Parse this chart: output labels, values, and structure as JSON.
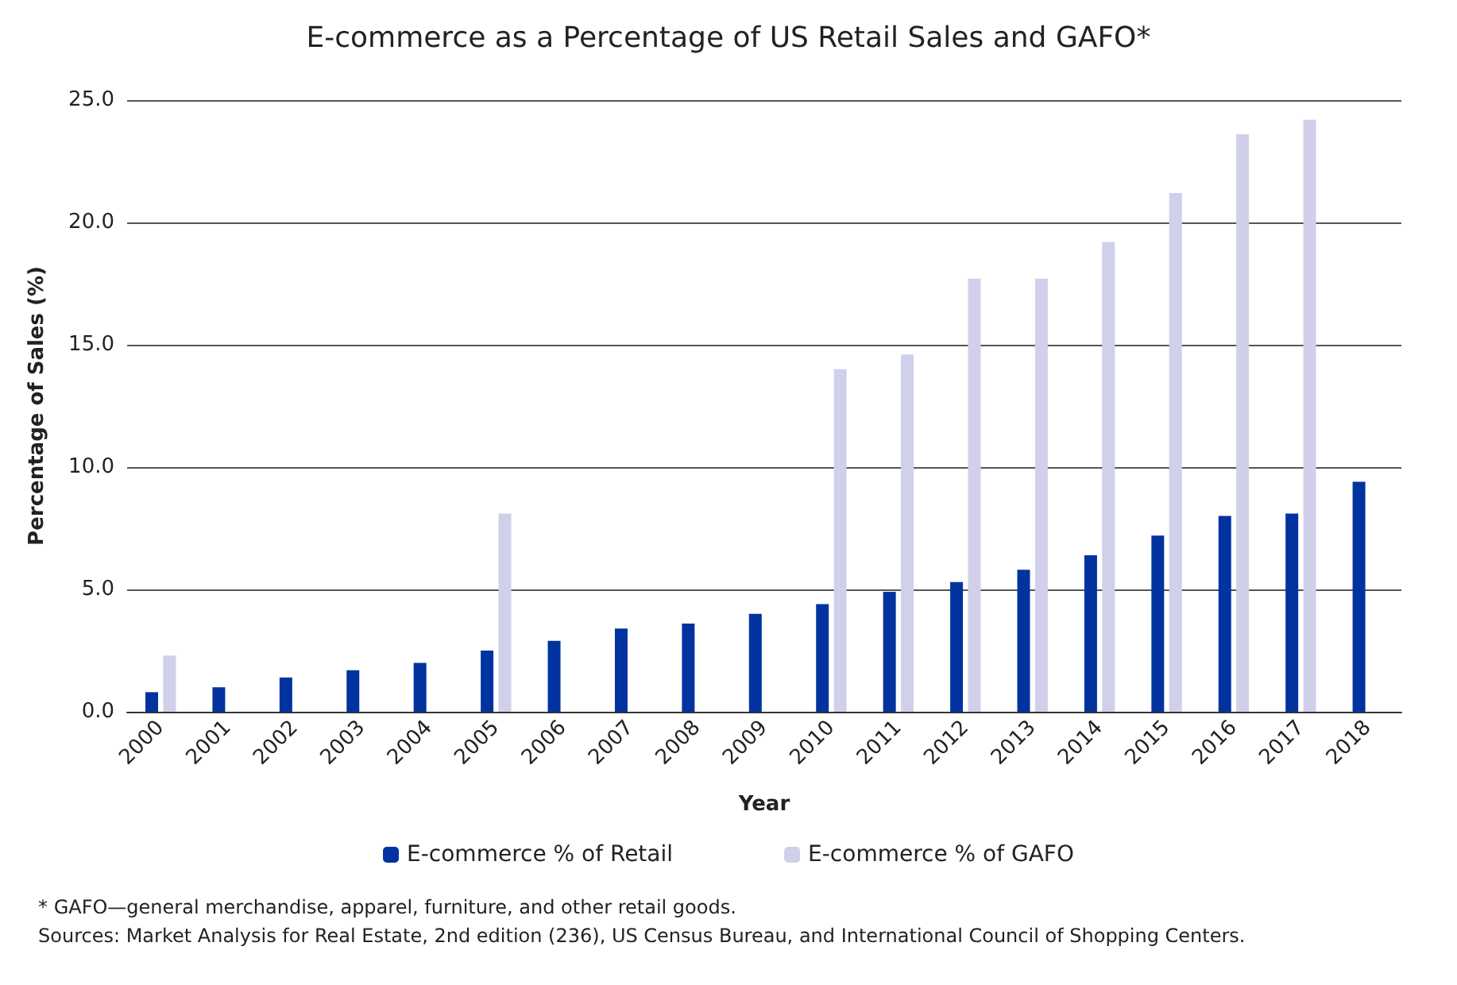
{
  "chart_data": {
    "type": "bar",
    "title": "E-commerce as a Percentage of US Retail Sales and GAFO*",
    "xlabel": "Year",
    "ylabel": "Percentage of Sales (%)",
    "categories": [
      "2000",
      "2001",
      "2002",
      "2003",
      "2004",
      "2005",
      "2006",
      "2007",
      "2008",
      "2009",
      "2010",
      "2011",
      "2012",
      "2013",
      "2014",
      "2015",
      "2016",
      "2017",
      "2018"
    ],
    "series": [
      {
        "name": "E-commerce % of Retail",
        "color": "#0033a0",
        "values": [
          0.8,
          1.0,
          1.4,
          1.7,
          2.0,
          2.5,
          2.9,
          3.4,
          3.6,
          4.0,
          4.4,
          4.9,
          5.3,
          5.8,
          6.4,
          7.2,
          8.0,
          8.1,
          9.4
        ]
      },
      {
        "name": "E-commerce % of GAFO",
        "color": "#d0d0ea",
        "values": [
          2.3,
          null,
          null,
          null,
          null,
          8.1,
          null,
          null,
          null,
          null,
          14.0,
          14.6,
          17.7,
          17.7,
          19.2,
          21.2,
          23.6,
          24.2,
          null
        ]
      }
    ],
    "ylim": [
      0,
      25
    ],
    "yticks": [
      {
        "value": 0,
        "label": "0.0"
      },
      {
        "value": 5,
        "label": "5.0"
      },
      {
        "value": 10,
        "label": "10.0"
      },
      {
        "value": 15,
        "label": "15.0"
      },
      {
        "value": 20,
        "label": "20.0"
      },
      {
        "value": 25,
        "label": "25.0"
      }
    ],
    "grid": "y",
    "legend": "bottom",
    "annotations": [
      "* GAFO—general merchandise, apparel, furniture, and other retail goods.",
      "Sources: Market Analysis for Real Estate, 2nd edition (236), US Census Bureau, and International Council of Shopping Centers."
    ]
  }
}
